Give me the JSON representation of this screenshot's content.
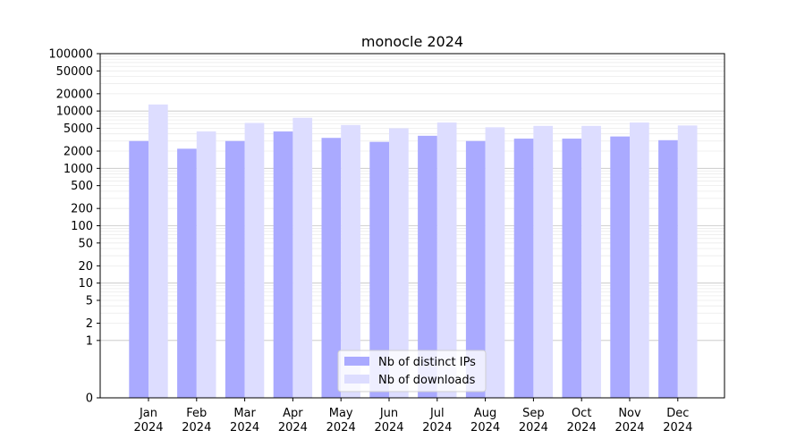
{
  "chart_data": {
    "type": "bar",
    "title": "monocle 2024",
    "categories": [
      "Jan\n2024",
      "Feb\n2024",
      "Mar\n2024",
      "Apr\n2024",
      "May\n2024",
      "Jun\n2024",
      "Jul\n2024",
      "Aug\n2024",
      "Sep\n2024",
      "Oct\n2024",
      "Nov\n2024",
      "Dec\n2024"
    ],
    "y_scale": "symlog",
    "ylim": [
      0,
      100000
    ],
    "y_ticks": [
      0,
      1,
      2,
      5,
      10,
      20,
      50,
      100,
      200,
      500,
      1000,
      2000,
      5000,
      10000,
      20000,
      50000,
      100000
    ],
    "grid": true,
    "legend_position": "bottom-center",
    "series": [
      {
        "name": "Nb of distinct IPs",
        "color": "#aaaaff",
        "values": [
          3000,
          2200,
          3000,
          4400,
          3400,
          2900,
          3700,
          3000,
          3300,
          3300,
          3600,
          3100
        ]
      },
      {
        "name": "Nb of downloads",
        "color": "#ddddff",
        "values": [
          13000,
          4400,
          6200,
          7600,
          5700,
          5000,
          6300,
          5200,
          5500,
          5500,
          6300,
          5600
        ]
      }
    ]
  }
}
